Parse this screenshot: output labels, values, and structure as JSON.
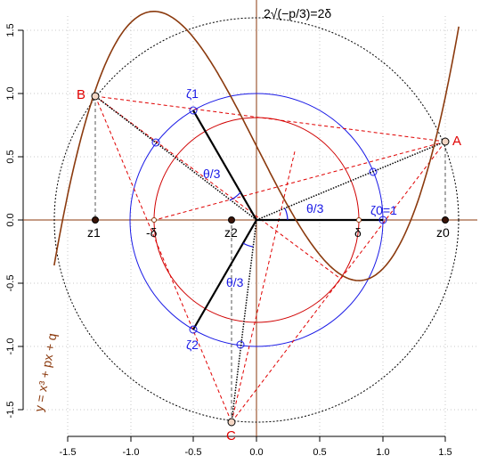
{
  "chart_data": {
    "type": "diagram",
    "title": "2√(−p/3)=2δ",
    "xlim": [
      -1.5,
      1.5
    ],
    "ylim": [
      -1.5,
      1.5
    ],
    "x_ticks": [
      "-1.5",
      "-1.0",
      "-0.5",
      "0.0",
      "0.5",
      "1.0",
      "1.5"
    ],
    "y_ticks": [
      "-1.5",
      "-1.0",
      "-0.5",
      "0.0",
      "0.5",
      "1.0",
      "1.5"
    ],
    "grid": true,
    "circles": [
      {
        "name": "unit",
        "radius": 1.0,
        "color": "#1a1ae6"
      },
      {
        "name": "delta",
        "radius": 0.81,
        "color": "#d00000"
      },
      {
        "name": "two-delta",
        "radius": 1.6,
        "color": "#000000"
      }
    ],
    "points": {
      "A": {
        "label": "A",
        "x": 1.5,
        "y": 0.62
      },
      "B": {
        "label": "B",
        "x": -1.3,
        "y": 0.98
      },
      "C": {
        "label": "C",
        "x": -0.2,
        "y": -1.6
      },
      "z0": {
        "label": "z0",
        "x": 1.5,
        "y": 0.0
      },
      "z1": {
        "label": "z1",
        "x": -1.3,
        "y": 0.0
      },
      "z2": {
        "label": "z2",
        "x": -0.2,
        "y": 0.0
      },
      "zeta0": {
        "label": "ζ0=1",
        "x": 1.0,
        "y": 0.0
      },
      "zeta1": {
        "label": "ζ1",
        "x": -0.5,
        "y": 0.866
      },
      "zeta2": {
        "label": "ζ2",
        "x": -0.5,
        "y": -0.866
      },
      "delta": {
        "label": "δ",
        "x": 0.81,
        "y": 0.0
      },
      "minus_delta": {
        "label": "-δ",
        "x": -0.81,
        "y": 0.0
      }
    },
    "angle_labels": [
      "θ/3",
      "θ/3",
      "θ/3"
    ],
    "curve_label": "y = x³ + px + q",
    "cubic": {
      "p": -1.97,
      "q": 0.585,
      "domain": [
        -1.6,
        1.6
      ]
    }
  }
}
